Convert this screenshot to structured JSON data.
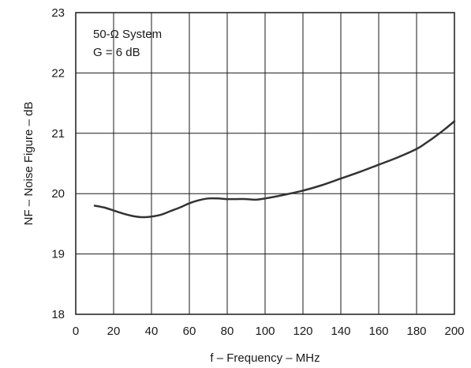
{
  "chart_data": {
    "type": "line",
    "xlabel": "f – Frequency – MHz",
    "ylabel": "NF – Noise Figure – dB",
    "xlim": [
      0,
      200
    ],
    "ylim": [
      18,
      23
    ],
    "xticks": [
      0,
      20,
      40,
      60,
      80,
      100,
      120,
      140,
      160,
      180,
      200
    ],
    "yticks": [
      18,
      19,
      20,
      21,
      22,
      23
    ],
    "grid": true,
    "annotations": [
      "50-Ω System",
      "G = 6 dB"
    ],
    "series": [
      {
        "x": [
          10,
          15,
          20,
          25,
          30,
          35,
          40,
          45,
          50,
          55,
          60,
          65,
          70,
          75,
          80,
          85,
          90,
          95,
          100,
          110,
          120,
          130,
          140,
          150,
          160,
          170,
          180,
          185,
          190,
          195,
          200
        ],
        "y": [
          19.8,
          19.77,
          19.72,
          19.67,
          19.63,
          19.61,
          19.62,
          19.65,
          19.71,
          19.77,
          19.84,
          19.89,
          19.92,
          19.92,
          19.91,
          19.91,
          19.91,
          19.9,
          19.92,
          19.98,
          20.05,
          20.14,
          20.25,
          20.36,
          20.48,
          20.6,
          20.74,
          20.84,
          20.95,
          21.07,
          21.2
        ]
      }
    ]
  },
  "colors": {
    "line": "#333333",
    "grid": "#1a1a1a",
    "background": "#ffffff"
  }
}
